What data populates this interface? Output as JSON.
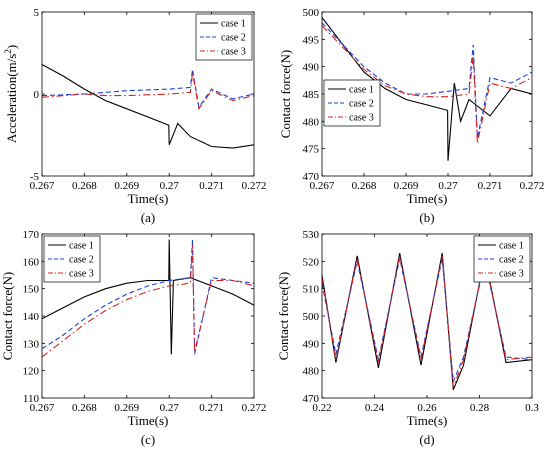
{
  "chart_data": [
    {
      "panel": "(a)",
      "type": "line",
      "xlabel": "Time(s)",
      "ylabel": "Acceleration(m/s²)",
      "ylabel_base": "Acceleration(m/s",
      "ylabel_sup": "2",
      "ylabel_close": ")",
      "xlim": [
        0.267,
        0.272
      ],
      "ylim": [
        -5,
        5
      ],
      "xticks": [
        0.267,
        0.268,
        0.269,
        0.27,
        0.271,
        0.272
      ],
      "xticklabels": [
        "0.267",
        "0.268",
        "0.269",
        "0.27",
        "0.271",
        "0.272"
      ],
      "yticks": [
        -5,
        0,
        5
      ],
      "yticklabels": [
        "-5",
        "0",
        "5"
      ],
      "legend_position": "top-right",
      "series": [
        {
          "name": "case 1",
          "color": "#000000",
          "dash": "solid",
          "x": [
            0.267,
            0.2675,
            0.268,
            0.2685,
            0.269,
            0.2695,
            0.26999,
            0.27,
            0.2702,
            0.2705,
            0.271,
            0.2715,
            0.272
          ],
          "y": [
            1.8,
            1.1,
            0.3,
            -0.4,
            -0.9,
            -1.4,
            -1.9,
            -3.1,
            -1.8,
            -2.6,
            -3.2,
            -3.3,
            -3.1
          ]
        },
        {
          "name": "case 2",
          "color": "#1f3fd6",
          "dash": "dashed",
          "x": [
            0.267,
            0.268,
            0.2685,
            0.269,
            0.27,
            0.2705,
            0.27055,
            0.2707,
            0.271,
            0.2715,
            0.272
          ],
          "y": [
            -0.1,
            0.0,
            0.1,
            0.2,
            0.3,
            0.4,
            1.5,
            -0.8,
            0.3,
            -0.3,
            0.0
          ]
        },
        {
          "name": "case 3",
          "color": "#d62020",
          "dash": "dashdot",
          "x": [
            0.267,
            0.268,
            0.2685,
            0.269,
            0.27,
            0.2705,
            0.27055,
            0.2707,
            0.271,
            0.2715,
            0.272
          ],
          "y": [
            -0.2,
            0.0,
            -0.1,
            -0.1,
            0.0,
            0.1,
            1.3,
            -0.9,
            0.2,
            -0.4,
            -0.1
          ]
        }
      ]
    },
    {
      "panel": "(b)",
      "type": "line",
      "xlabel": "Time(s)",
      "ylabel": "Contact force(N)",
      "xlim": [
        0.267,
        0.272
      ],
      "ylim": [
        470,
        500
      ],
      "xticks": [
        0.267,
        0.268,
        0.269,
        0.27,
        0.271,
        0.272
      ],
      "xticklabels": [
        "0.267",
        "0.268",
        "0.269",
        "0.27",
        "0.271",
        "0.272"
      ],
      "yticks": [
        470,
        475,
        480,
        485,
        490,
        495,
        500
      ],
      "yticklabels": [
        "470",
        "475",
        "480",
        "485",
        "490",
        "495",
        "500"
      ],
      "legend_position": "left-middle",
      "series": [
        {
          "name": "case 1",
          "color": "#000000",
          "dash": "solid",
          "x": [
            0.267,
            0.2675,
            0.268,
            0.2685,
            0.269,
            0.2695,
            0.26999,
            0.27,
            0.27015,
            0.2703,
            0.2705,
            0.271,
            0.2715,
            0.272
          ],
          "y": [
            499,
            494,
            489,
            486,
            484,
            483,
            482,
            472.8,
            487,
            480,
            484,
            481,
            486,
            485
          ]
        },
        {
          "name": "case 2",
          "color": "#1f3fd6",
          "dash": "dashed",
          "x": [
            0.267,
            0.2675,
            0.268,
            0.2685,
            0.269,
            0.2695,
            0.27,
            0.2705,
            0.2706,
            0.2707,
            0.271,
            0.2715,
            0.272
          ],
          "y": [
            498,
            494,
            490,
            487,
            485,
            485,
            485.5,
            486,
            494,
            477,
            488,
            487,
            489
          ]
        },
        {
          "name": "case 3",
          "color": "#d62020",
          "dash": "dashdot",
          "x": [
            0.267,
            0.2675,
            0.268,
            0.2685,
            0.269,
            0.2695,
            0.27,
            0.2705,
            0.2706,
            0.2707,
            0.271,
            0.2715,
            0.272
          ],
          "y": [
            497.5,
            493.5,
            489.5,
            486.5,
            485,
            484.5,
            484.5,
            485,
            492,
            476,
            487,
            486,
            488
          ]
        }
      ]
    },
    {
      "panel": "(c)",
      "type": "line",
      "xlabel": "Time(s)",
      "ylabel": "Contact force(N)",
      "xlim": [
        0.267,
        0.272
      ],
      "ylim": [
        110,
        170
      ],
      "xticks": [
        0.267,
        0.268,
        0.269,
        0.27,
        0.271,
        0.272
      ],
      "xticklabels": [
        "0.267",
        "0.268",
        "0.269",
        "0.27",
        "0.271",
        "0.272"
      ],
      "yticks": [
        110,
        120,
        130,
        140,
        150,
        160,
        170
      ],
      "yticklabels": [
        "110",
        "120",
        "130",
        "140",
        "150",
        "160",
        "170"
      ],
      "legend_position": "top-left",
      "series": [
        {
          "name": "case 1",
          "color": "#000000",
          "dash": "solid",
          "x": [
            0.267,
            0.2675,
            0.268,
            0.2685,
            0.269,
            0.2695,
            0.26999,
            0.27,
            0.27005,
            0.2701,
            0.2705,
            0.271,
            0.2715,
            0.272
          ],
          "y": [
            139,
            143,
            147,
            150,
            152,
            153,
            153,
            168,
            126,
            153,
            154,
            151,
            148,
            144
          ]
        },
        {
          "name": "case 2",
          "color": "#1f3fd6",
          "dash": "dashed",
          "x": [
            0.267,
            0.2675,
            0.268,
            0.2685,
            0.269,
            0.2695,
            0.27,
            0.2705,
            0.27055,
            0.2706,
            0.271,
            0.2715,
            0.272
          ],
          "y": [
            128,
            133,
            139,
            144,
            148,
            151,
            153,
            154,
            168,
            126,
            154,
            153,
            152
          ]
        },
        {
          "name": "case 3",
          "color": "#d62020",
          "dash": "dashdot",
          "x": [
            0.267,
            0.2675,
            0.268,
            0.2685,
            0.269,
            0.2695,
            0.27,
            0.2705,
            0.27055,
            0.2706,
            0.271,
            0.2715,
            0.272
          ],
          "y": [
            125,
            131,
            137,
            142,
            146,
            149,
            151,
            152,
            166,
            127,
            153,
            153,
            151
          ]
        }
      ]
    },
    {
      "panel": "(d)",
      "type": "line",
      "xlabel": "Time(s)",
      "ylabel": "Contact force(N)",
      "xlim": [
        0.22,
        0.3
      ],
      "ylim": [
        470,
        530
      ],
      "xticks": [
        0.22,
        0.24,
        0.26,
        0.28,
        0.3
      ],
      "xticklabels": [
        "0.22",
        "0.24",
        "0.26",
        "0.28",
        "0.3"
      ],
      "yticks": [
        470,
        480,
        490,
        500,
        510,
        520,
        530
      ],
      "yticklabels": [
        "470",
        "480",
        "490",
        "500",
        "510",
        "520",
        "530"
      ],
      "legend_position": "top-right",
      "series": [
        {
          "name": "case 1",
          "color": "#000000",
          "dash": "solid",
          "x": [
            0.22,
            0.2253,
            0.2334,
            0.2415,
            0.2496,
            0.2577,
            0.2658,
            0.27,
            0.2739,
            0.282,
            0.2901,
            0.3
          ],
          "y": [
            515,
            483,
            522,
            481,
            523,
            482,
            523,
            473,
            482,
            522,
            483,
            484
          ]
        },
        {
          "name": "case 2",
          "color": "#1f3fd6",
          "dash": "dashed",
          "x": [
            0.22,
            0.2253,
            0.2334,
            0.2415,
            0.2496,
            0.2577,
            0.2658,
            0.27,
            0.2739,
            0.282,
            0.2901,
            0.3
          ],
          "y": [
            512,
            486,
            520,
            484,
            521,
            485,
            521,
            476,
            485,
            520,
            485,
            484
          ]
        },
        {
          "name": "case 3",
          "color": "#d62020",
          "dash": "dashdot",
          "x": [
            0.22,
            0.2253,
            0.2334,
            0.2415,
            0.2496,
            0.2577,
            0.2658,
            0.27,
            0.2739,
            0.282,
            0.2901,
            0.3
          ],
          "y": [
            514,
            484,
            521,
            483,
            522,
            484,
            522,
            474,
            484,
            521,
            484,
            485
          ]
        }
      ]
    }
  ]
}
